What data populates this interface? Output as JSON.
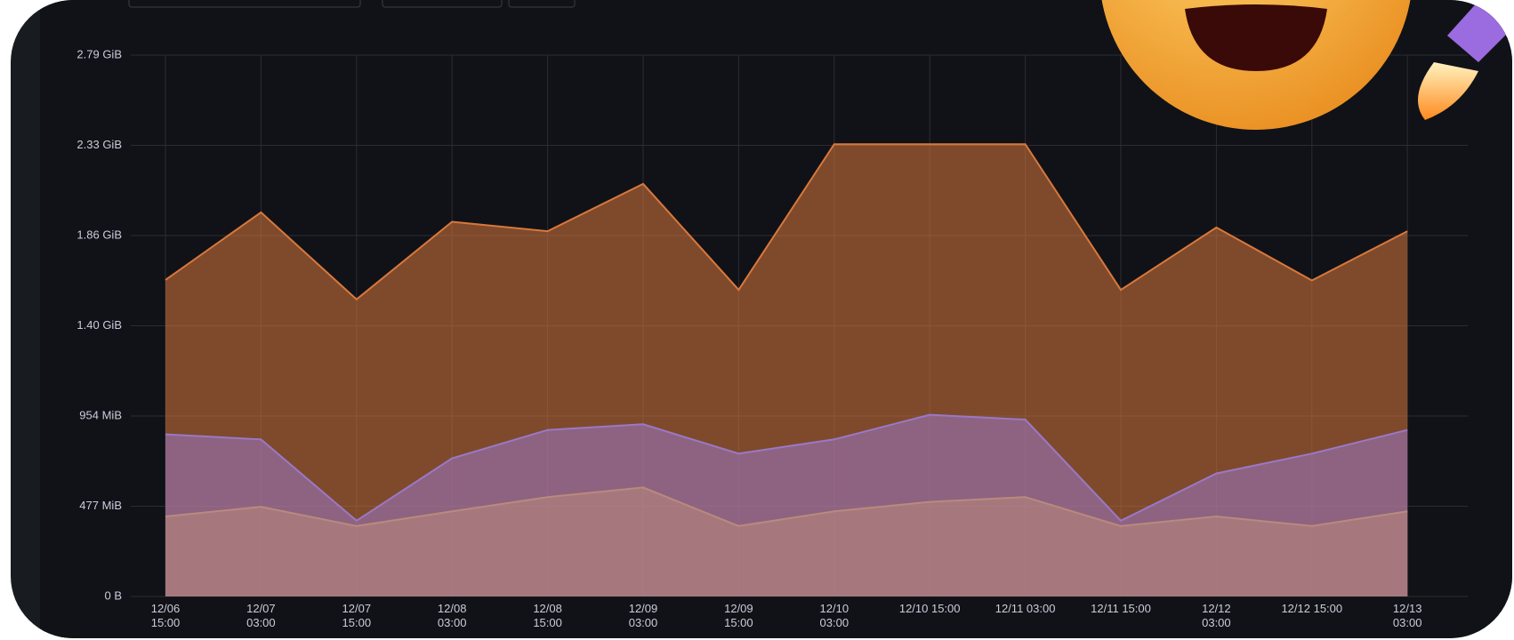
{
  "chart_data": {
    "type": "area",
    "categories": [
      "12/06\n15:00",
      "12/07\n03:00",
      "12/07\n15:00",
      "12/08\n03:00",
      "12/08\n15:00",
      "12/09\n03:00",
      "12/09\n15:00",
      "12/10\n03:00",
      "12/10 15:00",
      "12/11 03:00",
      "12/11 15:00",
      "12/12\n03:00",
      "12/12 15:00",
      "12/13\n03:00"
    ],
    "series": [
      {
        "color": "#d9783c",
        "values": [
          1673,
          2030,
          1570,
          1980,
          1930,
          2180,
          1620,
          2390,
          2390,
          2390,
          1620,
          1950,
          1670,
          1930
        ]
      },
      {
        "color": "#9a78c8",
        "values": [
          857,
          830,
          400,
          730,
          880,
          910,
          755,
          830,
          960,
          935,
          400,
          650,
          755,
          880
        ]
      },
      {
        "color": "#b98a7c",
        "values": [
          423,
          474,
          372,
          450,
          525,
          576,
          372,
          450,
          500,
          525,
          372,
          423,
          372,
          450
        ]
      }
    ],
    "ylim": [
      0,
      2860.8
    ],
    "yticks": [
      {
        "value": 0,
        "label": "0 B"
      },
      {
        "value": 476.8,
        "label": "477 MiB"
      },
      {
        "value": 953.6,
        "label": "954 MiB"
      },
      {
        "value": 1430.4,
        "label": "1.40 GiB"
      },
      {
        "value": 1907.2,
        "label": "1.86 GiB"
      },
      {
        "value": 2384,
        "label": "2.33 GiB"
      },
      {
        "value": 2860.8,
        "label": "2.79 GiB"
      }
    ],
    "grid": true
  }
}
